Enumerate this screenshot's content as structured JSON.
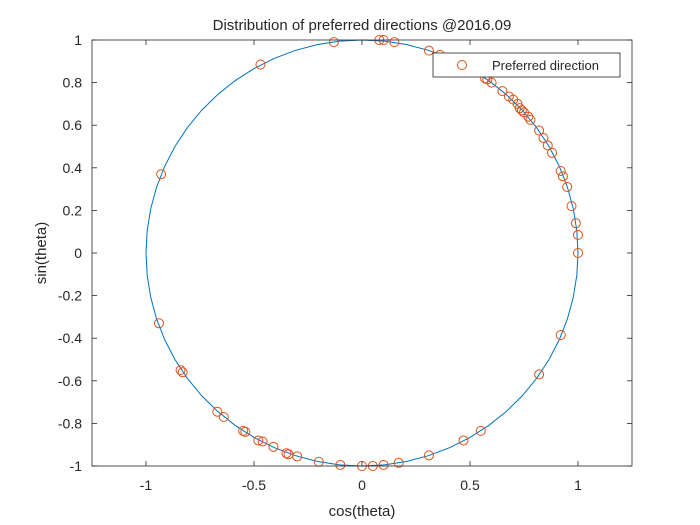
{
  "chart_data": {
    "type": "scatter",
    "title": "Distribution of preferred directions @2016.09",
    "xlabel": "cos(theta)",
    "ylabel": "sin(theta)",
    "xlim": [
      -1.25,
      1.25
    ],
    "ylim": [
      -1,
      1
    ],
    "xticks": [
      -1,
      -0.5,
      0,
      0.5,
      1
    ],
    "yticks": [
      -1,
      -0.8,
      -0.6,
      -0.4,
      -0.2,
      0,
      0.2,
      0.4,
      0.6,
      0.8,
      1
    ],
    "xtick_labels": [
      "-1",
      "-0.5",
      "0",
      "0.5",
      "1"
    ],
    "ytick_labels": [
      "-1",
      "-0.8",
      "-0.6",
      "-0.4",
      "-0.2",
      "0",
      "0.2",
      "0.4",
      "0.6",
      "0.8",
      "1"
    ],
    "grid": false,
    "legend_position": "top-right",
    "series": [
      {
        "kind": "line",
        "color": "#0072BD",
        "unit_circle_points": 60
      },
      {
        "name": "Preferred direction",
        "kind": "marker",
        "marker": "circle",
        "color": "#D95319",
        "points": [
          [
            -0.13,
            0.99
          ],
          [
            0.08,
            1.0
          ],
          [
            0.1,
            1.0
          ],
          [
            0.15,
            0.99
          ],
          [
            0.31,
            0.95
          ],
          [
            0.36,
            0.93
          ],
          [
            -0.47,
            0.885
          ],
          [
            0.57,
            0.82
          ],
          [
            0.58,
            0.815
          ],
          [
            0.6,
            0.8
          ],
          [
            0.65,
            0.76
          ],
          [
            0.68,
            0.735
          ],
          [
            0.7,
            0.72
          ],
          [
            0.72,
            0.7
          ],
          [
            0.73,
            0.68
          ],
          [
            0.74,
            0.67
          ],
          [
            0.75,
            0.66
          ],
          [
            0.77,
            0.64
          ],
          [
            0.78,
            0.625
          ],
          [
            0.82,
            0.575
          ],
          [
            0.84,
            0.54
          ],
          [
            0.86,
            0.505
          ],
          [
            0.88,
            0.47
          ],
          [
            0.92,
            0.385
          ],
          [
            0.93,
            0.36
          ],
          [
            0.95,
            0.31
          ],
          [
            0.97,
            0.22
          ],
          [
            0.99,
            0.14
          ],
          [
            1.0,
            0.085
          ],
          [
            1.0,
            0.0
          ],
          [
            -0.93,
            0.37
          ],
          [
            -0.94,
            -0.33
          ],
          [
            0.92,
            -0.385
          ],
          [
            -0.84,
            -0.55
          ],
          [
            -0.83,
            -0.56
          ],
          [
            0.82,
            -0.57
          ],
          [
            -0.67,
            -0.745
          ],
          [
            -0.64,
            -0.77
          ],
          [
            -0.55,
            -0.835
          ],
          [
            -0.54,
            -0.84
          ],
          [
            -0.48,
            -0.88
          ],
          [
            -0.46,
            -0.885
          ],
          [
            -0.41,
            -0.91
          ],
          [
            -0.35,
            -0.94
          ],
          [
            -0.34,
            -0.945
          ],
          [
            -0.3,
            -0.955
          ],
          [
            0.55,
            -0.835
          ],
          [
            0.47,
            -0.88
          ],
          [
            -0.2,
            -0.98
          ],
          [
            -0.1,
            -0.995
          ],
          [
            0.0,
            -1.0
          ],
          [
            0.05,
            -1.0
          ],
          [
            0.1,
            -0.995
          ],
          [
            0.17,
            -0.985
          ],
          [
            0.31,
            -0.95
          ]
        ]
      }
    ]
  }
}
